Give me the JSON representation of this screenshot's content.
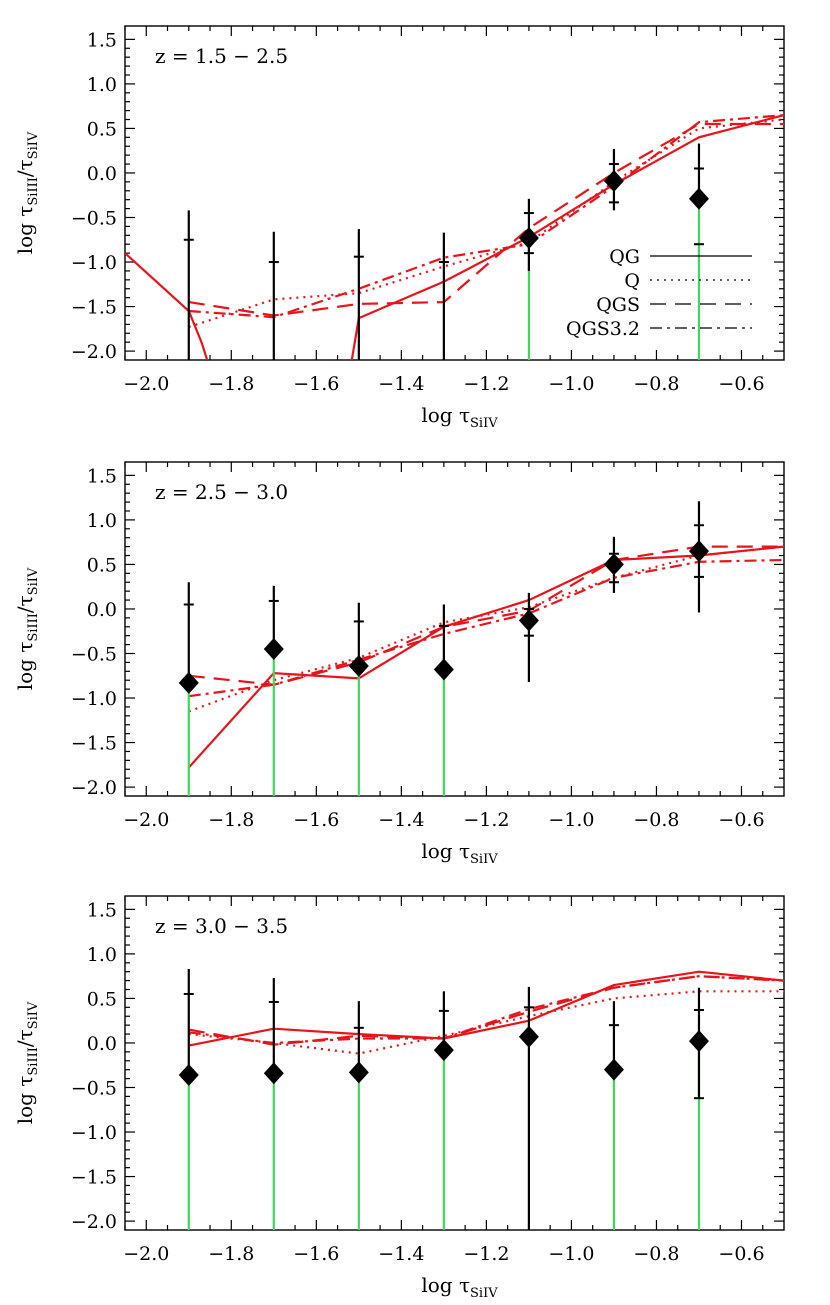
{
  "chart_data": [
    {
      "type": "line",
      "panel_label": "z = 1.5 − 2.5",
      "xlabel": {
        "prefix": "log τ",
        "sub": "SiIV"
      },
      "ylabel": {
        "prefix": "log τ",
        "sub": "SiIII",
        "mid": "/τ",
        "sub2": "SiIV"
      },
      "xlim": [
        -2.05,
        -0.5
      ],
      "ylim": [
        -2.1,
        1.65
      ],
      "xticks": [
        -2.0,
        -1.8,
        -1.6,
        -1.4,
        -1.2,
        -1.0,
        -0.8,
        -0.6
      ],
      "xtick_labels": [
        "−2.0",
        "−1.8",
        "−1.6",
        "−1.4",
        "−1.2",
        "−1.0",
        "−0.8",
        "−0.6"
      ],
      "yticks": [
        -2.0,
        -1.5,
        -1.0,
        -0.5,
        0.0,
        0.5,
        1.0,
        1.5
      ],
      "ytick_labels": [
        "−2.0",
        "−1.5",
        "−1.0",
        "−0.5",
        "0.0",
        "0.5",
        "1.0",
        "1.5"
      ],
      "legend": [
        {
          "label": "QG",
          "style": "solid"
        },
        {
          "label": "Q",
          "style": "dotted"
        },
        {
          "label": "QGS",
          "style": "dashed"
        },
        {
          "label": "QGS3.2",
          "style": "dashdot"
        }
      ],
      "points": [
        {
          "x": -1.9,
          "y": null,
          "outer": [
            -2.1,
            -0.42
          ],
          "inner": [
            -2.1,
            -0.75
          ],
          "limit": false
        },
        {
          "x": -1.7,
          "y": null,
          "outer": [
            -2.1,
            -0.66
          ],
          "inner": [
            -2.1,
            -1.0
          ],
          "limit": false
        },
        {
          "x": -1.5,
          "y": null,
          "outer": [
            -2.1,
            -0.63
          ],
          "inner": [
            -2.1,
            -0.94
          ],
          "limit": false
        },
        {
          "x": -1.3,
          "y": null,
          "outer": [
            -2.1,
            -0.67
          ],
          "inner": [
            -2.1,
            -1.0
          ],
          "limit": false
        },
        {
          "x": -1.1,
          "y": -0.73,
          "outer": [
            -1.1,
            -0.29
          ],
          "inner": [
            -0.9,
            -0.45
          ],
          "limit": true
        },
        {
          "x": -0.9,
          "y": -0.09,
          "outer": [
            -0.42,
            0.27
          ],
          "inner": [
            -0.33,
            0.1
          ],
          "limit": false
        },
        {
          "x": -0.7,
          "y": -0.29,
          "outer": [
            -2.1,
            0.33
          ],
          "inner": [
            -0.8,
            0.05
          ],
          "limit": true
        }
      ],
      "series": [
        {
          "name": "QG",
          "style": "solid",
          "x": [
            -2.05,
            -1.9,
            -1.87,
            -1.85
          ],
          "y": [
            -0.9,
            -1.55,
            -1.9,
            -2.2
          ]
        },
        {
          "name": "QG",
          "style": "solid",
          "x": [
            -1.52,
            -1.5,
            -1.3,
            -1.1,
            -0.9,
            -0.7,
            -0.5
          ],
          "y": [
            -2.2,
            -1.63,
            -1.22,
            -0.72,
            -0.13,
            0.4,
            0.65
          ]
        },
        {
          "name": "Q",
          "style": "dotted",
          "x": [
            -1.9,
            -1.7,
            -1.5,
            -1.3,
            -1.1,
            -0.9,
            -0.7,
            -0.5
          ],
          "y": [
            -1.73,
            -1.42,
            -1.35,
            -1.05,
            -0.78,
            -0.1,
            0.5,
            0.6
          ]
        },
        {
          "name": "QGS",
          "style": "dashed",
          "x": [
            -1.9,
            -1.7,
            -1.5,
            -1.3,
            -1.1,
            -0.9,
            -0.7,
            -0.5
          ],
          "y": [
            -1.45,
            -1.6,
            -1.47,
            -1.45,
            -0.62,
            0.0,
            0.55,
            0.55
          ]
        },
        {
          "name": "QGS3.2",
          "style": "dashdot",
          "x": [
            -1.9,
            -1.7,
            -1.5,
            -1.3,
            -1.1,
            -0.9,
            -0.7,
            -0.5
          ],
          "y": [
            -1.55,
            -1.62,
            -1.3,
            -0.95,
            -0.8,
            -0.15,
            0.57,
            0.65
          ]
        }
      ]
    },
    {
      "type": "line",
      "panel_label": "z = 2.5 − 3.0",
      "xlabel": {
        "prefix": "log τ",
        "sub": "SiIV"
      },
      "ylabel": {
        "prefix": "log τ",
        "sub": "SiIII",
        "mid": "/τ",
        "sub2": "SiIV"
      },
      "xlim": [
        -2.05,
        -0.5
      ],
      "ylim": [
        -2.1,
        1.65
      ],
      "xticks": [
        -2.0,
        -1.8,
        -1.6,
        -1.4,
        -1.2,
        -1.0,
        -0.8,
        -0.6
      ],
      "xtick_labels": [
        "−2.0",
        "−1.8",
        "−1.6",
        "−1.4",
        "−1.2",
        "−1.0",
        "−0.8",
        "−0.6"
      ],
      "yticks": [
        -2.0,
        -1.5,
        -1.0,
        -0.5,
        0.0,
        0.5,
        1.0,
        1.5
      ],
      "ytick_labels": [
        "−2.0",
        "−1.5",
        "−1.0",
        "−0.5",
        "0.0",
        "0.5",
        "1.0",
        "1.5"
      ],
      "legend": [],
      "points": [
        {
          "x": -1.9,
          "y": -0.83,
          "outer": [
            -2.1,
            0.3
          ],
          "inner": [
            -2.1,
            0.05
          ],
          "limit": true
        },
        {
          "x": -1.7,
          "y": -0.45,
          "outer": [
            -2.1,
            0.26
          ],
          "inner": [
            -2.1,
            0.09
          ],
          "limit": true
        },
        {
          "x": -1.5,
          "y": -0.64,
          "outer": [
            -2.1,
            0.07
          ],
          "inner": [
            -2.1,
            -0.14
          ],
          "limit": true
        },
        {
          "x": -1.3,
          "y": -0.68,
          "outer": [
            -2.1,
            0.05
          ],
          "inner": [
            -2.1,
            -0.19
          ],
          "limit": true
        },
        {
          "x": -1.1,
          "y": -0.13,
          "outer": [
            -0.82,
            0.18
          ],
          "inner": [
            -0.3,
            0.0
          ],
          "limit": false
        },
        {
          "x": -0.9,
          "y": 0.5,
          "outer": [
            0.18,
            0.81
          ],
          "inner": [
            0.3,
            0.62
          ],
          "limit": false
        },
        {
          "x": -0.7,
          "y": 0.65,
          "outer": [
            -0.04,
            1.21
          ],
          "inner": [
            0.36,
            0.94
          ],
          "limit": false
        }
      ],
      "series": [
        {
          "name": "QG",
          "style": "solid",
          "x": [
            -1.9,
            -1.7,
            -1.5,
            -1.3,
            -1.1,
            -0.9,
            -0.7,
            -0.5
          ],
          "y": [
            -1.78,
            -0.72,
            -0.78,
            -0.2,
            0.1,
            0.55,
            0.6,
            0.7
          ]
        },
        {
          "name": "Q",
          "style": "dotted",
          "x": [
            -1.9,
            -1.7,
            -1.5,
            -1.3,
            -1.1,
            -0.9,
            -0.7,
            -0.5
          ],
          "y": [
            -1.15,
            -0.8,
            -0.55,
            -0.15,
            0.02,
            0.35,
            0.6,
            0.7
          ]
        },
        {
          "name": "QGS",
          "style": "dashed",
          "x": [
            -1.9,
            -1.7,
            -1.5,
            -1.3,
            -1.1,
            -0.9,
            -0.7,
            -0.5
          ],
          "y": [
            -0.75,
            -0.85,
            -0.6,
            -0.2,
            -0.02,
            0.55,
            0.7,
            0.7
          ]
        },
        {
          "name": "QGS3.2",
          "style": "dashdot",
          "x": [
            -1.9,
            -1.7,
            -1.5,
            -1.3,
            -1.1,
            -0.9,
            -0.7,
            -0.5
          ],
          "y": [
            -0.98,
            -0.85,
            -0.57,
            -0.28,
            -0.05,
            0.35,
            0.53,
            0.55
          ]
        }
      ]
    },
    {
      "type": "line",
      "panel_label": "z = 3.0 − 3.5",
      "xlabel": {
        "prefix": "log τ",
        "sub": "SiIV"
      },
      "ylabel": {
        "prefix": "log τ",
        "sub": "SiIII",
        "mid": "/τ",
        "sub2": "SiIV"
      },
      "xlim": [
        -2.05,
        -0.5
      ],
      "ylim": [
        -2.1,
        1.65
      ],
      "xticks": [
        -2.0,
        -1.8,
        -1.6,
        -1.4,
        -1.2,
        -1.0,
        -0.8,
        -0.6
      ],
      "xtick_labels": [
        "−2.0",
        "−1.8",
        "−1.6",
        "−1.4",
        "−1.2",
        "−1.0",
        "−0.8",
        "−0.6"
      ],
      "yticks": [
        -2.0,
        -1.5,
        -1.0,
        -0.5,
        0.0,
        0.5,
        1.0,
        1.5
      ],
      "ytick_labels": [
        "−2.0",
        "−1.5",
        "−1.0",
        "−0.5",
        "0.0",
        "0.5",
        "1.0",
        "1.5"
      ],
      "legend": [],
      "points": [
        {
          "x": -1.9,
          "y": -0.36,
          "outer": [
            -2.1,
            0.83
          ],
          "inner": [
            -2.1,
            0.55
          ],
          "limit": true
        },
        {
          "x": -1.7,
          "y": -0.34,
          "outer": [
            -2.1,
            0.73
          ],
          "inner": [
            -2.1,
            0.46
          ],
          "limit": true
        },
        {
          "x": -1.5,
          "y": -0.33,
          "outer": [
            -2.1,
            0.47
          ],
          "inner": [
            -2.1,
            0.17
          ],
          "limit": true
        },
        {
          "x": -1.3,
          "y": -0.08,
          "outer": [
            -2.1,
            0.58
          ],
          "inner": [
            -2.1,
            0.36
          ],
          "limit": true
        },
        {
          "x": -1.1,
          "y": 0.07,
          "outer": [
            -2.1,
            0.63
          ],
          "inner": [
            -2.1,
            0.4
          ],
          "limit": false
        },
        {
          "x": -0.9,
          "y": -0.3,
          "outer": [
            -2.1,
            0.47
          ],
          "inner": [
            -2.1,
            0.2
          ],
          "limit": true
        },
        {
          "x": -0.7,
          "y": 0.02,
          "outer": [
            -0.62,
            0.62
          ],
          "inner": [
            -0.62,
            0.37
          ],
          "limit": true
        }
      ],
      "series": [
        {
          "name": "QG",
          "style": "solid",
          "x": [
            -1.9,
            -1.7,
            -1.5,
            -1.3,
            -1.1,
            -0.9,
            -0.7,
            -0.5
          ],
          "y": [
            -0.03,
            0.16,
            0.1,
            0.05,
            0.25,
            0.65,
            0.8,
            0.7
          ]
        },
        {
          "name": "Q",
          "style": "dotted",
          "x": [
            -1.9,
            -1.7,
            -1.5,
            -1.3,
            -1.1,
            -0.9,
            -0.7,
            -0.5
          ],
          "y": [
            0.1,
            0.0,
            -0.12,
            0.08,
            0.3,
            0.5,
            0.58,
            0.58
          ]
        },
        {
          "name": "QGS",
          "style": "dashed",
          "x": [
            -1.9,
            -1.7,
            -1.5,
            -1.3,
            -1.1,
            -0.9,
            -0.7,
            -0.5
          ],
          "y": [
            0.15,
            -0.02,
            0.08,
            0.05,
            0.35,
            0.62,
            0.75,
            0.7
          ]
        },
        {
          "name": "QGS3.2",
          "style": "dashdot",
          "x": [
            -1.9,
            -1.7,
            -1.5,
            -1.3,
            -1.1,
            -0.9,
            -0.7,
            -0.5
          ],
          "y": [
            0.12,
            0.0,
            0.05,
            0.05,
            0.38,
            0.62,
            0.75,
            0.7
          ]
        }
      ]
    }
  ]
}
